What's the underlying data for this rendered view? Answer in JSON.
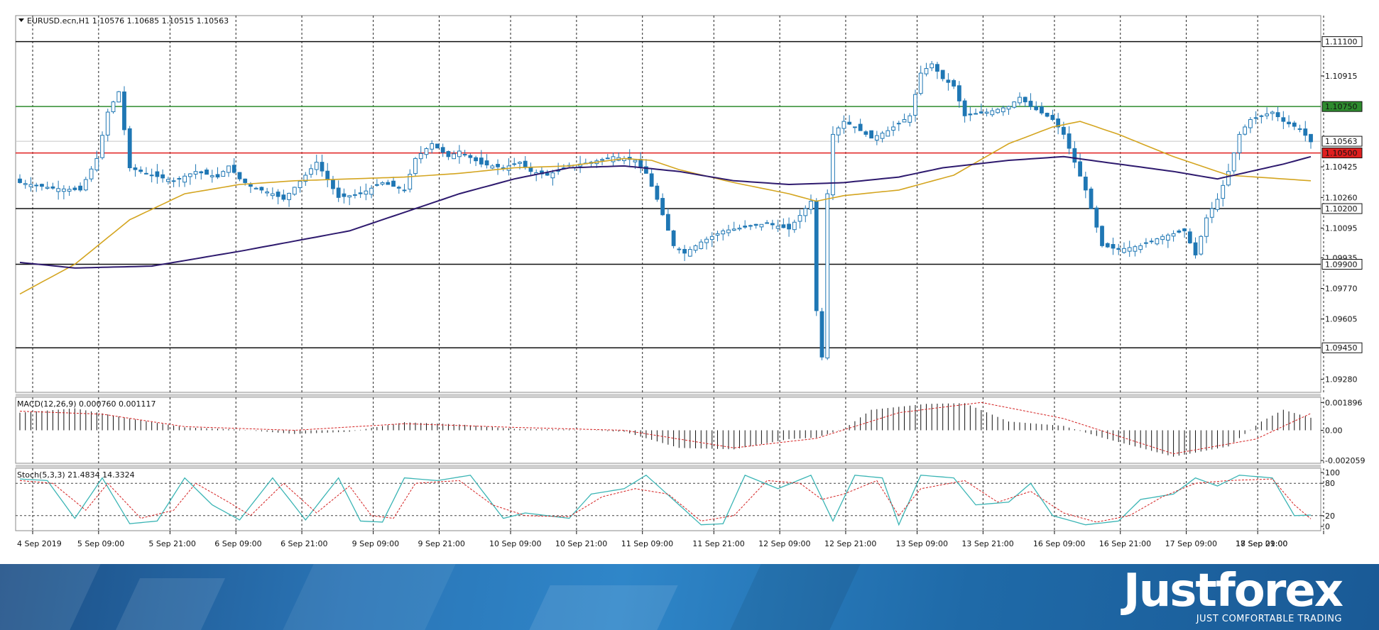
{
  "header": {
    "symbol": "EURUSD.ecn,H1",
    "ohlc": "1.10576 1.10685 1.10515 1.10563"
  },
  "macd_label": "MACD(12,26,9) 0.000760 0.001117",
  "stoch_label": "Stoch(5,3,3) 21.4834 14.3324",
  "brand": {
    "name": "Justforex",
    "tagline": "JUST COMFORTABLE TRADING"
  },
  "colors": {
    "candle": "#1f77b4",
    "ma_fast": "#d4a520",
    "ma_slow": "#2e1a6e",
    "green_level": "#2e8b2e",
    "red_level": "#e02020",
    "black_level": "#111111",
    "stoch_main": "#3bb5b5",
    "signal": "#d42020"
  },
  "chart_data": [
    {
      "type": "candlestick",
      "symbol": "EURUSD.ecn",
      "timeframe": "H1",
      "ylim": [
        1.0921,
        1.1124
      ],
      "yticks": [
        "1.11100",
        "1.10915",
        "1.10750",
        "1.10563",
        "1.10500",
        "1.10425",
        "1.10260",
        "1.10200",
        "1.10095",
        "1.09935",
        "1.09900",
        "1.09770",
        "1.09605",
        "1.09450",
        "1.09280"
      ],
      "x_tick_labels": [
        "4 Sep 2019",
        "5 Sep 09:00",
        "5 Sep 21:00",
        "6 Sep 09:00",
        "6 Sep 21:00",
        "9 Sep 09:00",
        "9 Sep 21:00",
        "10 Sep 09:00",
        "10 Sep 21:00",
        "11 Sep 09:00",
        "11 Sep 21:00",
        "12 Sep 09:00",
        "12 Sep 21:00",
        "13 Sep 09:00",
        "13 Sep 21:00",
        "16 Sep 09:00",
        "16 Sep 21:00",
        "17 Sep 09:00",
        "17 Sep 21:00",
        "18 Sep 09:00"
      ],
      "horizontal_levels": [
        {
          "value": 1.111,
          "label": "1.11100",
          "color": "black"
        },
        {
          "value": 1.1075,
          "label": "1.10750",
          "color": "green"
        },
        {
          "value": 1.105,
          "label": "1.10500",
          "color": "red"
        },
        {
          "value": 1.102,
          "label": "1.10200",
          "color": "black"
        },
        {
          "value": 1.099,
          "label": "1.09900",
          "color": "black"
        },
        {
          "value": 1.0945,
          "label": "1.09450",
          "color": "black"
        }
      ],
      "current_price": {
        "value": 1.10563,
        "label": "1.10563"
      },
      "close_anchors": [
        [
          0,
          1.1034
        ],
        [
          6,
          1.1031
        ],
        [
          11,
          1.103
        ],
        [
          14,
          1.1047
        ],
        [
          16,
          1.1072
        ],
        [
          18,
          1.1083
        ],
        [
          20,
          1.1042
        ],
        [
          24,
          1.1038
        ],
        [
          28,
          1.1035
        ],
        [
          32,
          1.104
        ],
        [
          36,
          1.1037
        ],
        [
          38,
          1.1043
        ],
        [
          40,
          1.1036
        ],
        [
          42,
          1.1032
        ],
        [
          46,
          1.1028
        ],
        [
          48,
          1.1025
        ],
        [
          52,
          1.1038
        ],
        [
          54,
          1.1045
        ],
        [
          58,
          1.1026
        ],
        [
          62,
          1.1028
        ],
        [
          66,
          1.1034
        ],
        [
          70,
          1.103
        ],
        [
          72,
          1.1047
        ],
        [
          75,
          1.1055
        ],
        [
          78,
          1.1048
        ],
        [
          80,
          1.1051
        ],
        [
          84,
          1.1044
        ],
        [
          88,
          1.1042
        ],
        [
          91,
          1.1045
        ],
        [
          93,
          1.104
        ],
        [
          96,
          1.1038
        ],
        [
          100,
          1.1043
        ],
        [
          104,
          1.1045
        ],
        [
          108,
          1.1048
        ],
        [
          112,
          1.1046
        ],
        [
          114,
          1.1039
        ],
        [
          116,
          1.1025
        ],
        [
          119,
          1.1
        ],
        [
          121,
          1.0996
        ],
        [
          124,
          1.1002
        ],
        [
          128,
          1.1008
        ],
        [
          132,
          1.101
        ],
        [
          136,
          1.1012
        ],
        [
          140,
          1.1009
        ],
        [
          143,
          1.102
        ],
        [
          144,
          1.1024
        ],
        [
          145,
          1.0965
        ],
        [
          146,
          1.094
        ],
        [
          147,
          1.1028
        ],
        [
          148,
          1.106
        ],
        [
          150,
          1.1067
        ],
        [
          152,
          1.1064
        ],
        [
          155,
          1.1058
        ],
        [
          158,
          1.1062
        ],
        [
          162,
          1.107
        ],
        [
          164,
          1.1093
        ],
        [
          166,
          1.1098
        ],
        [
          168,
          1.109
        ],
        [
          170,
          1.1086
        ],
        [
          172,
          1.107
        ],
        [
          176,
          1.1072
        ],
        [
          180,
          1.1075
        ],
        [
          182,
          1.108
        ],
        [
          184,
          1.1075
        ],
        [
          188,
          1.1068
        ],
        [
          190,
          1.106
        ],
        [
          192,
          1.1045
        ],
        [
          194,
          1.103
        ],
        [
          197,
          1.1
        ],
        [
          200,
          1.0998
        ],
        [
          204,
          1.1
        ],
        [
          208,
          1.1005
        ],
        [
          212,
          1.1008
        ],
        [
          214,
          1.0995
        ],
        [
          216,
          1.1015
        ],
        [
          218,
          1.1025
        ],
        [
          220,
          1.104
        ],
        [
          222,
          1.106
        ],
        [
          224,
          1.1068
        ],
        [
          228,
          1.1072
        ],
        [
          230,
          1.1067
        ],
        [
          233,
          1.1063
        ],
        [
          235,
          1.1056
        ]
      ],
      "ma_fast_anchors": [
        [
          0,
          1.0974
        ],
        [
          10,
          1.099
        ],
        [
          20,
          1.1014
        ],
        [
          30,
          1.1028
        ],
        [
          40,
          1.1033
        ],
        [
          50,
          1.1035
        ],
        [
          60,
          1.1036
        ],
        [
          70,
          1.1037
        ],
        [
          80,
          1.1039
        ],
        [
          90,
          1.1042
        ],
        [
          100,
          1.1043
        ],
        [
          110,
          1.1047
        ],
        [
          115,
          1.1046
        ],
        [
          120,
          1.1041
        ],
        [
          130,
          1.1034
        ],
        [
          140,
          1.1028
        ],
        [
          145,
          1.1024
        ],
        [
          150,
          1.1027
        ],
        [
          160,
          1.103
        ],
        [
          170,
          1.1038
        ],
        [
          180,
          1.1055
        ],
        [
          188,
          1.1064
        ],
        [
          193,
          1.1067
        ],
        [
          200,
          1.106
        ],
        [
          210,
          1.1048
        ],
        [
          220,
          1.1038
        ],
        [
          230,
          1.1036
        ],
        [
          235,
          1.1035
        ]
      ],
      "ma_slow_anchors": [
        [
          0,
          1.0991
        ],
        [
          10,
          1.0988
        ],
        [
          24,
          1.0989
        ],
        [
          40,
          1.0997
        ],
        [
          60,
          1.1008
        ],
        [
          70,
          1.1018
        ],
        [
          80,
          1.1028
        ],
        [
          90,
          1.1036
        ],
        [
          100,
          1.1042
        ],
        [
          110,
          1.1043
        ],
        [
          120,
          1.104
        ],
        [
          130,
          1.1035
        ],
        [
          140,
          1.1033
        ],
        [
          150,
          1.1034
        ],
        [
          160,
          1.1037
        ],
        [
          168,
          1.1042
        ],
        [
          180,
          1.1046
        ],
        [
          190,
          1.1048
        ],
        [
          200,
          1.1044
        ],
        [
          210,
          1.104
        ],
        [
          218,
          1.1036
        ],
        [
          230,
          1.1044
        ],
        [
          235,
          1.1048
        ]
      ],
      "ma_fast_legend": "",
      "ma_slow_legend": ""
    },
    {
      "type": "histogram",
      "name": "MACD(12,26,9)",
      "main": 0.00076,
      "signal": 0.001117,
      "yticks": [
        "0.001896",
        "0.00",
        "-0.002059"
      ],
      "ylim": [
        -0.00225,
        0.00225
      ],
      "hist_anchors": [
        [
          0,
          0.0012
        ],
        [
          10,
          0.0015
        ],
        [
          20,
          0.0008
        ],
        [
          30,
          0.0002
        ],
        [
          40,
          5e-05
        ],
        [
          50,
          -0.00025
        ],
        [
          60,
          -0.0001
        ],
        [
          70,
          0.00055
        ],
        [
          80,
          0.0004
        ],
        [
          90,
          0.0001
        ],
        [
          100,
          5e-05
        ],
        [
          110,
          -0.0001
        ],
        [
          120,
          -0.0012
        ],
        [
          130,
          -0.0013
        ],
        [
          140,
          -0.0006
        ],
        [
          145,
          -0.0005
        ],
        [
          150,
          0.0001
        ],
        [
          155,
          0.0014
        ],
        [
          165,
          0.0018
        ],
        [
          172,
          0.00185
        ],
        [
          180,
          0.0006
        ],
        [
          190,
          0.0003
        ],
        [
          197,
          -0.0005
        ],
        [
          210,
          -0.0018
        ],
        [
          220,
          -0.0011
        ],
        [
          226,
          0.0006
        ],
        [
          230,
          0.0014
        ],
        [
          235,
          0.00085
        ]
      ],
      "signal_anchors": [
        [
          0,
          0.0013
        ],
        [
          15,
          0.0011
        ],
        [
          30,
          0.00025
        ],
        [
          50,
          0.0
        ],
        [
          70,
          0.00045
        ],
        [
          90,
          0.0002
        ],
        [
          110,
          0.0
        ],
        [
          130,
          -0.0012
        ],
        [
          145,
          -0.00055
        ],
        [
          160,
          0.0012
        ],
        [
          175,
          0.0019
        ],
        [
          190,
          0.0008
        ],
        [
          210,
          -0.0016
        ],
        [
          225,
          -0.0006
        ],
        [
          235,
          0.00115
        ]
      ]
    },
    {
      "type": "line",
      "name": "Stoch(5,3,3)",
      "main": 21.4834,
      "signal": 14.3324,
      "levels": [
        20,
        80
      ],
      "yticks": [
        "100",
        "80",
        "20",
        "0"
      ],
      "ylim": [
        0,
        100
      ],
      "main_anchors": [
        [
          0,
          88
        ],
        [
          5,
          85
        ],
        [
          10,
          15
        ],
        [
          15,
          90
        ],
        [
          20,
          5
        ],
        [
          25,
          10
        ],
        [
          30,
          90
        ],
        [
          35,
          40
        ],
        [
          40,
          12
        ],
        [
          46,
          90
        ],
        [
          52,
          12
        ],
        [
          58,
          90
        ],
        [
          62,
          10
        ],
        [
          66,
          8
        ],
        [
          70,
          90
        ],
        [
          76,
          85
        ],
        [
          82,
          95
        ],
        [
          88,
          15
        ],
        [
          92,
          25
        ],
        [
          100,
          15
        ],
        [
          104,
          60
        ],
        [
          110,
          70
        ],
        [
          114,
          95
        ],
        [
          120,
          40
        ],
        [
          124,
          3
        ],
        [
          128,
          5
        ],
        [
          132,
          95
        ],
        [
          138,
          70
        ],
        [
          144,
          95
        ],
        [
          148,
          10
        ],
        [
          152,
          95
        ],
        [
          157,
          90
        ],
        [
          160,
          3
        ],
        [
          164,
          95
        ],
        [
          170,
          90
        ],
        [
          174,
          40
        ],
        [
          180,
          45
        ],
        [
          184,
          80
        ],
        [
          188,
          20
        ],
        [
          194,
          3
        ],
        [
          200,
          10
        ],
        [
          204,
          50
        ],
        [
          210,
          60
        ],
        [
          214,
          90
        ],
        [
          218,
          75
        ],
        [
          222,
          95
        ],
        [
          228,
          90
        ],
        [
          232,
          20
        ],
        [
          235,
          21
        ]
      ],
      "signal_anchors": [
        [
          0,
          85
        ],
        [
          6,
          80
        ],
        [
          12,
          30
        ],
        [
          16,
          80
        ],
        [
          22,
          15
        ],
        [
          28,
          30
        ],
        [
          32,
          80
        ],
        [
          38,
          45
        ],
        [
          42,
          20
        ],
        [
          48,
          80
        ],
        [
          54,
          25
        ],
        [
          60,
          75
        ],
        [
          64,
          20
        ],
        [
          68,
          15
        ],
        [
          72,
          80
        ],
        [
          80,
          85
        ],
        [
          86,
          40
        ],
        [
          92,
          20
        ],
        [
          100,
          18
        ],
        [
          106,
          55
        ],
        [
          112,
          70
        ],
        [
          118,
          60
        ],
        [
          124,
          10
        ],
        [
          130,
          20
        ],
        [
          136,
          85
        ],
        [
          142,
          80
        ],
        [
          146,
          50
        ],
        [
          150,
          60
        ],
        [
          156,
          85
        ],
        [
          160,
          20
        ],
        [
          164,
          70
        ],
        [
          172,
          85
        ],
        [
          178,
          45
        ],
        [
          184,
          65
        ],
        [
          190,
          25
        ],
        [
          196,
          8
        ],
        [
          202,
          20
        ],
        [
          208,
          55
        ],
        [
          214,
          80
        ],
        [
          220,
          85
        ],
        [
          228,
          88
        ],
        [
          232,
          40
        ],
        [
          235,
          14
        ]
      ]
    }
  ]
}
